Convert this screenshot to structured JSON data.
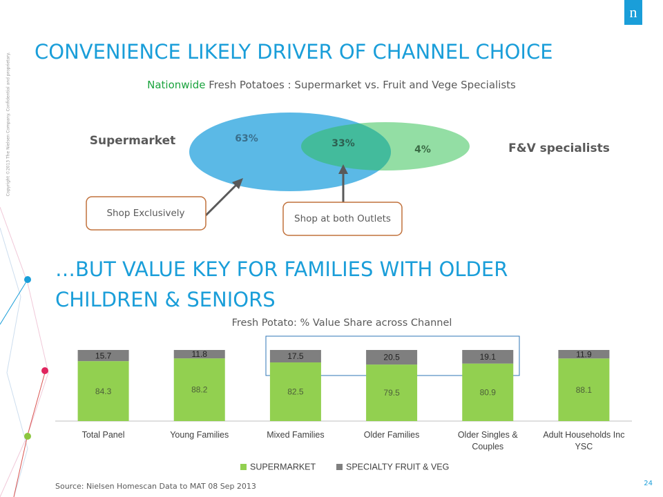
{
  "header": {
    "title": "CONVENIENCE LIKELY DRIVER OF CHANNEL CHOICE",
    "subtitle_highlight": "Nationwide",
    "subtitle": "Fresh Potatoes :  Supermarket vs. Fruit and Vege Specialists",
    "logo": "n",
    "copyright": "Copyright ©2013 The Nielsen Company. Confidential and proprietary."
  },
  "venn": {
    "left_label": "Supermarket",
    "right_label": "F&V specialists",
    "region_labels": [
      "63%",
      "33%",
      "4%"
    ],
    "callouts": [
      "Shop Exclusively",
      "Shop at both Outlets"
    ]
  },
  "section_title": "…BUT VALUE KEY FOR FAMILIES WITH OLDER CHILDREN & SENIORS",
  "chart_data": {
    "type": "stacked_bar",
    "title": "Fresh Potato: % Value Share across Channel",
    "categories": [
      "Total Panel",
      "Young Families",
      "Mixed Families",
      "Older Families",
      "Older Singles & Couples",
      "Adult Households Inc YSC"
    ],
    "series": [
      {
        "name": "SUPERMARKET",
        "color": "#92d050",
        "values": [
          84.3,
          88.2,
          82.5,
          79.5,
          80.9,
          88.1
        ]
      },
      {
        "name": "SPECIALTY FRUIT & VEG",
        "color": "#7f7f7f",
        "values": [
          15.7,
          11.8,
          17.5,
          20.5,
          19.1,
          11.9
        ]
      }
    ],
    "ylim": [
      0,
      100
    ],
    "legend": "bottom"
  },
  "footer": {
    "source": "Source: Nielsen Homescan Data to MAT 08 Sep 2013",
    "page": "24"
  }
}
